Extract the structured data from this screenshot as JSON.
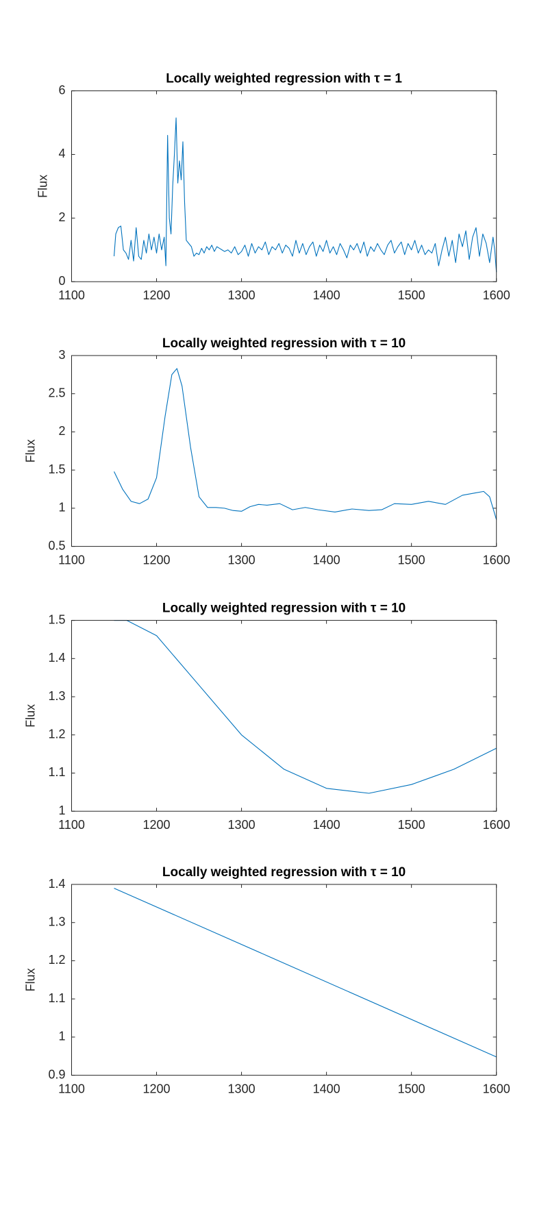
{
  "chart_data": [
    {
      "type": "line",
      "title": "Locally weighted regression with τ = 1",
      "ylabel": "Flux",
      "color": "#0072bd",
      "xlim": [
        1100,
        1600
      ],
      "xticks": [
        1100,
        1200,
        1300,
        1400,
        1500,
        1600
      ],
      "ylim": [
        0,
        6
      ],
      "yticks": [
        0,
        2,
        4,
        6
      ],
      "x": [
        1150,
        1152,
        1155,
        1158,
        1161,
        1164,
        1167,
        1170,
        1173,
        1176,
        1179,
        1182,
        1185,
        1188,
        1191,
        1194,
        1197,
        1200,
        1203,
        1206,
        1209,
        1211,
        1213,
        1215,
        1217,
        1219,
        1221,
        1223,
        1225,
        1227,
        1229,
        1231,
        1233,
        1235,
        1238,
        1241,
        1244,
        1247,
        1250,
        1253,
        1256,
        1259,
        1262,
        1265,
        1268,
        1271,
        1274,
        1277,
        1280,
        1284,
        1288,
        1292,
        1296,
        1300,
        1304,
        1308,
        1312,
        1316,
        1320,
        1324,
        1328,
        1332,
        1336,
        1340,
        1344,
        1348,
        1352,
        1356,
        1360,
        1364,
        1368,
        1372,
        1376,
        1380,
        1384,
        1388,
        1392,
        1396,
        1400,
        1404,
        1408,
        1412,
        1416,
        1420,
        1424,
        1428,
        1432,
        1436,
        1440,
        1444,
        1448,
        1452,
        1456,
        1460,
        1464,
        1468,
        1472,
        1476,
        1480,
        1484,
        1488,
        1492,
        1496,
        1500,
        1504,
        1508,
        1512,
        1516,
        1520,
        1524,
        1528,
        1532,
        1536,
        1540,
        1544,
        1548,
        1552,
        1556,
        1560,
        1564,
        1568,
        1572,
        1576,
        1580,
        1584,
        1588,
        1592,
        1596,
        1598,
        1600
      ],
      "values": [
        0.8,
        1.5,
        1.7,
        1.75,
        1.0,
        0.9,
        0.7,
        1.3,
        0.65,
        1.7,
        0.8,
        0.7,
        1.3,
        0.9,
        1.5,
        1.0,
        1.4,
        0.9,
        1.5,
        1.0,
        1.4,
        0.5,
        4.6,
        2.0,
        1.5,
        3.0,
        4.0,
        5.15,
        3.1,
        3.8,
        3.2,
        4.4,
        2.5,
        1.3,
        1.2,
        1.1,
        0.8,
        0.9,
        0.85,
        1.05,
        0.9,
        1.1,
        1.0,
        1.15,
        0.95,
        1.1,
        1.05,
        1.0,
        0.95,
        1.0,
        0.9,
        1.1,
        0.85,
        0.95,
        1.15,
        0.8,
        1.2,
        0.9,
        1.1,
        1.0,
        1.25,
        0.85,
        1.1,
        1.0,
        1.2,
        0.9,
        1.15,
        1.05,
        0.8,
        1.3,
        0.9,
        1.2,
        0.85,
        1.1,
        1.25,
        0.8,
        1.15,
        0.95,
        1.3,
        0.9,
        1.1,
        0.85,
        1.2,
        1.0,
        0.75,
        1.15,
        1.0,
        1.2,
        0.9,
        1.25,
        0.8,
        1.1,
        0.95,
        1.2,
        1.0,
        0.85,
        1.15,
        1.3,
        0.9,
        1.1,
        1.25,
        0.85,
        1.2,
        1.0,
        1.3,
        0.9,
        1.15,
        0.85,
        1.0,
        0.9,
        1.2,
        0.5,
        1.0,
        1.4,
        0.8,
        1.3,
        0.6,
        1.5,
        1.1,
        1.6,
        0.7,
        1.4,
        1.7,
        0.8,
        1.5,
        1.2,
        0.6,
        1.4,
        1.0,
        0.3
      ]
    },
    {
      "type": "line",
      "title": "Locally weighted regression with τ = 10",
      "ylabel": "Flux",
      "color": "#0072bd",
      "xlim": [
        1100,
        1600
      ],
      "xticks": [
        1100,
        1200,
        1300,
        1400,
        1500,
        1600
      ],
      "ylim": [
        0.5,
        3
      ],
      "yticks": [
        0.5,
        1,
        1.5,
        2,
        2.5,
        3
      ],
      "x": [
        1150,
        1160,
        1170,
        1180,
        1190,
        1200,
        1210,
        1218,
        1224,
        1230,
        1240,
        1250,
        1260,
        1270,
        1280,
        1290,
        1300,
        1310,
        1320,
        1330,
        1345,
        1360,
        1375,
        1390,
        1410,
        1430,
        1450,
        1465,
        1480,
        1500,
        1520,
        1540,
        1560,
        1575,
        1585,
        1592,
        1600
      ],
      "values": [
        1.48,
        1.25,
        1.09,
        1.06,
        1.12,
        1.4,
        2.2,
        2.75,
        2.83,
        2.6,
        1.8,
        1.15,
        1.01,
        1.01,
        1.0,
        0.97,
        0.96,
        1.02,
        1.05,
        1.04,
        1.06,
        0.98,
        1.01,
        0.98,
        0.95,
        0.99,
        0.97,
        0.98,
        1.06,
        1.05,
        1.09,
        1.05,
        1.17,
        1.2,
        1.22,
        1.15,
        0.85
      ]
    },
    {
      "type": "line",
      "title": "Locally weighted regression with τ = 10",
      "ylabel": "Flux",
      "color": "#0072bd",
      "xlim": [
        1100,
        1600
      ],
      "xticks": [
        1100,
        1200,
        1300,
        1400,
        1500,
        1600
      ],
      "ylim": [
        1,
        1.5
      ],
      "yticks": [
        1,
        1.1,
        1.2,
        1.3,
        1.4,
        1.5
      ],
      "x": [
        1150,
        1165,
        1200,
        1250,
        1300,
        1350,
        1400,
        1450,
        1500,
        1550,
        1600
      ],
      "values": [
        1.5,
        1.5,
        1.46,
        1.33,
        1.2,
        1.11,
        1.06,
        1.047,
        1.07,
        1.11,
        1.165
      ]
    },
    {
      "type": "line",
      "title": "Locally weighted regression with τ = 10",
      "ylabel": "Flux",
      "color": "#0072bd",
      "xlim": [
        1100,
        1600
      ],
      "xticks": [
        1100,
        1200,
        1300,
        1400,
        1500,
        1600
      ],
      "ylim": [
        0.9,
        1.4
      ],
      "yticks": [
        0.9,
        1,
        1.1,
        1.2,
        1.3,
        1.4
      ],
      "x": [
        1150,
        1600
      ],
      "values": [
        1.39,
        0.948
      ]
    }
  ]
}
